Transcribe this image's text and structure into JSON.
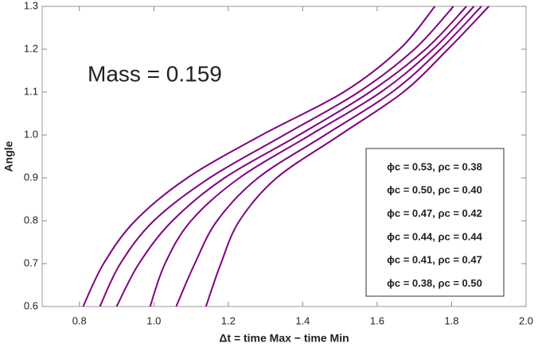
{
  "chart_data": {
    "type": "line",
    "annotation": "Mass = 0.159",
    "xlabel": "Δt = time Max − time Min",
    "ylabel": "Angle",
    "xlim": [
      0.7,
      2.0
    ],
    "ylim": [
      0.6,
      1.3
    ],
    "xticks": [
      0.8,
      {
        "value": 1.0,
        "label": "1.0"
      },
      1.2,
      1.4,
      1.6,
      1.8,
      {
        "value": 2.0,
        "label": "2.0"
      }
    ],
    "yticks": [
      0.6,
      0.7,
      0.8,
      0.9,
      {
        "value": 1.0,
        "label": "1.0"
      },
      1.1,
      1.2,
      1.3
    ],
    "series": [
      {
        "name": "ϕc = 0.53, ρc = 0.38",
        "color": "#800080",
        "x": [
          0.81,
          0.865,
          0.95,
          1.09,
          1.29,
          1.51,
          1.66,
          1.755
        ],
        "values": [
          0.6,
          0.7,
          0.8,
          0.9,
          1.0,
          1.1,
          1.2,
          1.3
        ]
      },
      {
        "name": "ϕc = 0.50, ρc = 0.40",
        "color": "#800080",
        "x": [
          0.855,
          0.91,
          1.0,
          1.15,
          1.35,
          1.55,
          1.7,
          1.805
        ],
        "values": [
          0.6,
          0.7,
          0.8,
          0.9,
          1.0,
          1.1,
          1.2,
          1.3
        ]
      },
      {
        "name": "ϕc = 0.47, ρc = 0.42",
        "color": "#800080",
        "x": [
          0.9,
          0.96,
          1.05,
          1.19,
          1.39,
          1.58,
          1.73,
          1.84
        ],
        "values": [
          0.6,
          0.7,
          0.8,
          0.9,
          1.0,
          1.1,
          1.2,
          1.3
        ]
      },
      {
        "name": "ϕc = 0.44, ρc = 0.44",
        "color": "#800080",
        "x": [
          0.99,
          1.03,
          1.1,
          1.23,
          1.42,
          1.61,
          1.75,
          1.86
        ],
        "values": [
          0.6,
          0.7,
          0.8,
          0.9,
          1.0,
          1.1,
          1.2,
          1.3
        ]
      },
      {
        "name": "ϕc = 0.41, ρc = 0.47",
        "color": "#800080",
        "x": [
          1.06,
          1.11,
          1.17,
          1.28,
          1.46,
          1.64,
          1.77,
          1.88
        ],
        "values": [
          0.6,
          0.7,
          0.8,
          0.9,
          1.0,
          1.1,
          1.2,
          1.3
        ]
      },
      {
        "name": "ϕc = 0.38, ρc = 0.50",
        "color": "#800080",
        "x": [
          1.14,
          1.18,
          1.23,
          1.33,
          1.5,
          1.67,
          1.79,
          1.9
        ],
        "values": [
          0.6,
          0.7,
          0.8,
          0.9,
          1.0,
          1.1,
          1.2,
          1.3
        ]
      }
    ]
  }
}
